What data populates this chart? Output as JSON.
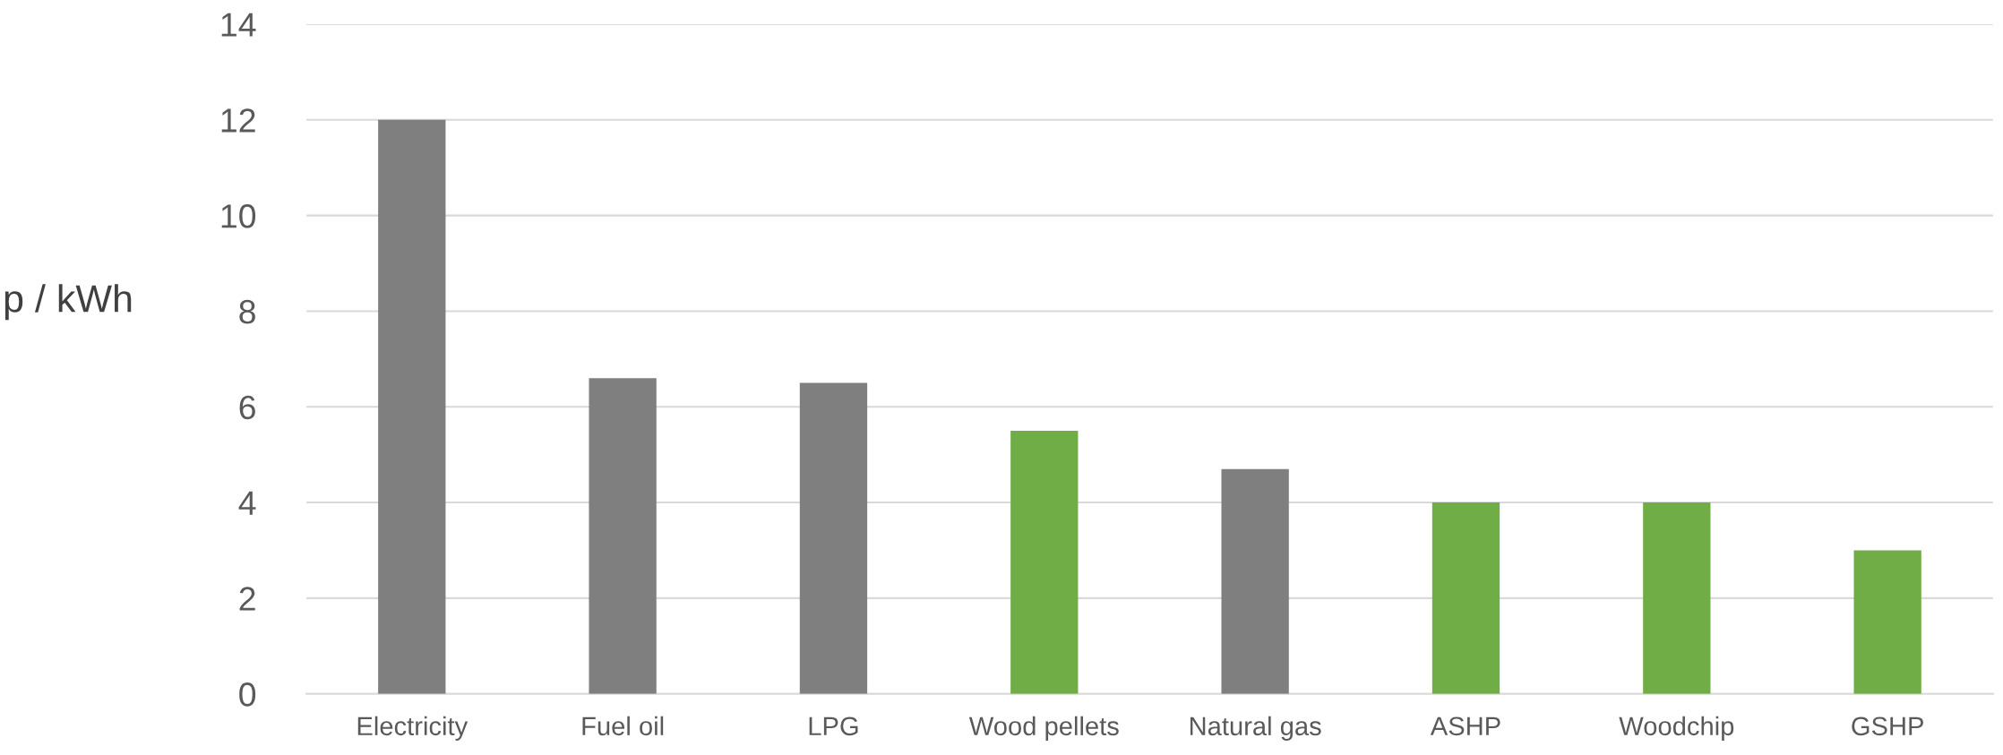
{
  "chart_data": {
    "type": "bar",
    "ylabel": "p / kWh",
    "categories": [
      "Electricity",
      "Fuel oil",
      "LPG",
      "Wood pellets",
      "Natural gas",
      "ASHP",
      "Woodchip",
      "GSHP"
    ],
    "values": [
      12,
      6.6,
      6.5,
      5.5,
      4.7,
      4,
      4,
      3
    ],
    "colors": [
      "#7f7f7f",
      "#7f7f7f",
      "#7f7f7f",
      "#70ad47",
      "#7f7f7f",
      "#70ad47",
      "#70ad47",
      "#70ad47"
    ],
    "ylim": [
      0,
      14
    ],
    "yticks": [
      0,
      2,
      4,
      6,
      8,
      10,
      12,
      14
    ],
    "grid": "y",
    "legend": false
  }
}
